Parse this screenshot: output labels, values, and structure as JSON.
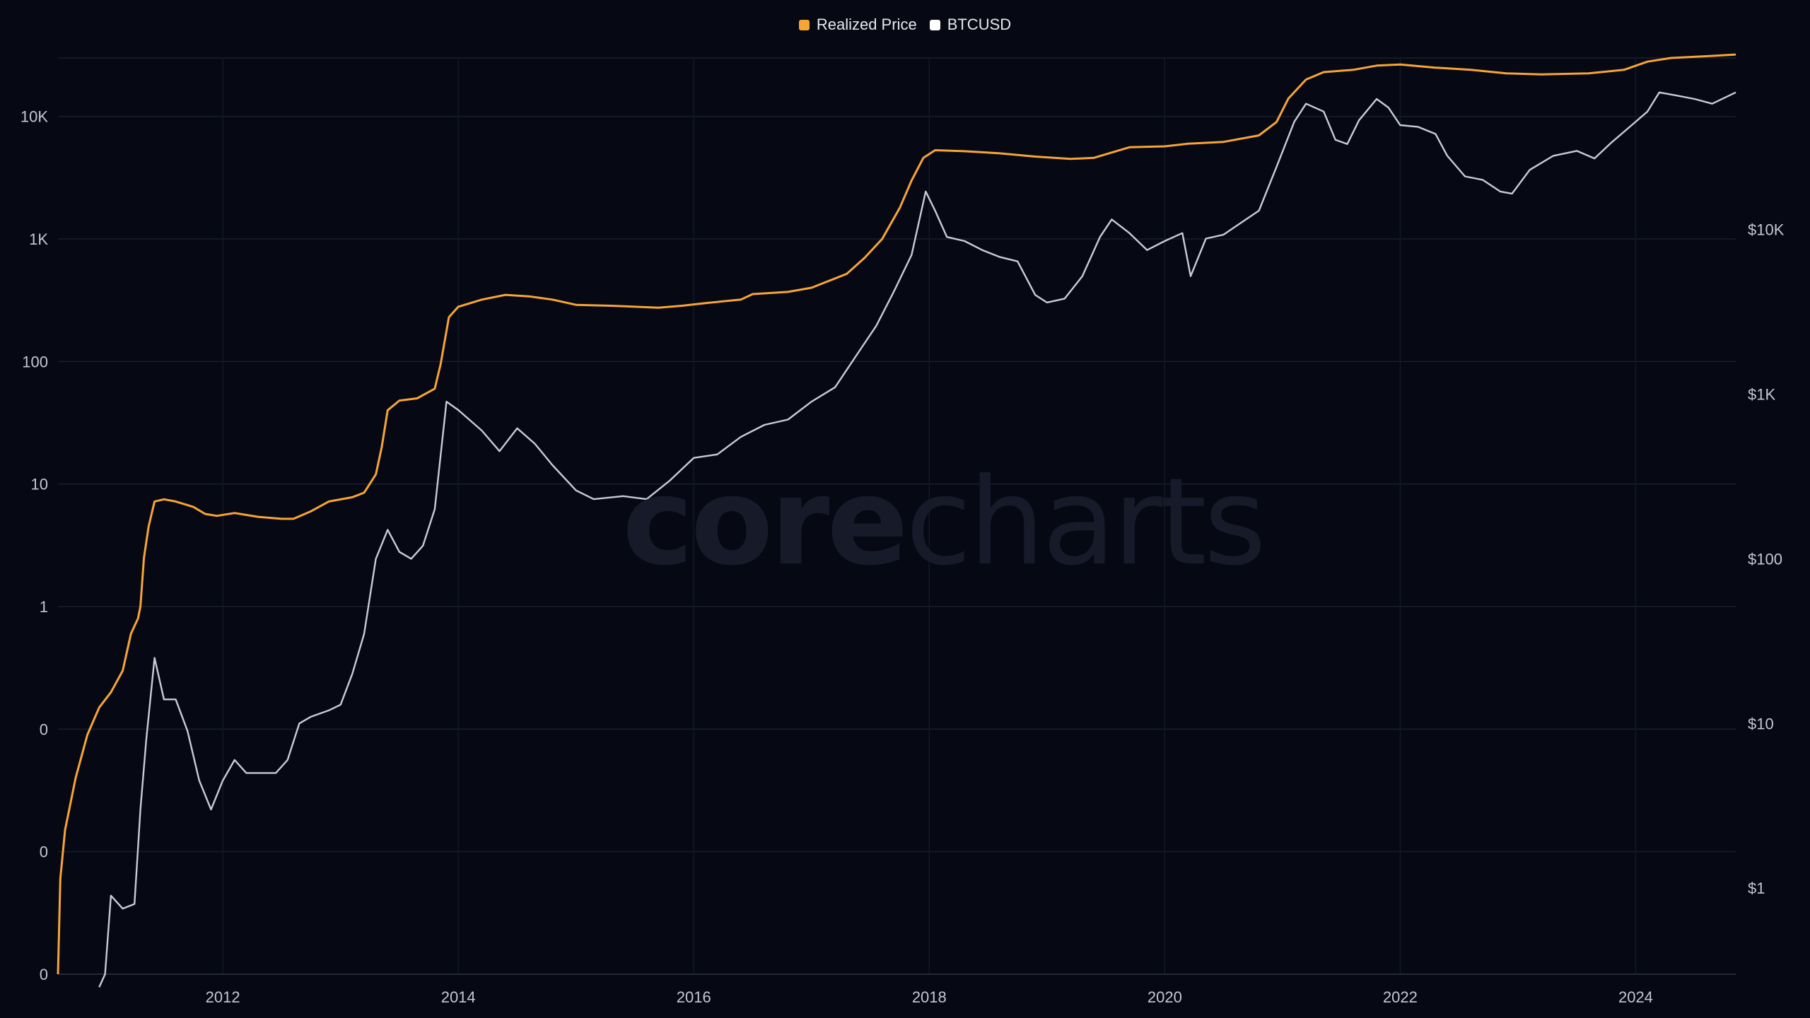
{
  "legend": [
    {
      "label": "Realized Price",
      "color": "#f7a534"
    },
    {
      "label": "BTCUSD",
      "color": "#ffffff"
    }
  ],
  "watermark": {
    "bold": "core",
    "light": "charts"
  },
  "chart_data": {
    "type": "line",
    "title": "",
    "xlabel": "",
    "ylabel": "",
    "grid": true,
    "legend_position": "top-center",
    "left_axis": {
      "scale": "log",
      "ticks": [
        "0",
        "0",
        "0",
        "1",
        "10",
        "100",
        "1K",
        "10K"
      ],
      "ylim": [
        0.001,
        30000
      ]
    },
    "right_axis": {
      "scale": "log",
      "ticks": [
        "$1",
        "$10",
        "$100",
        "$1K",
        "$10K"
      ],
      "ylim": [
        0.3,
        110000
      ]
    },
    "x_axis": {
      "ticks": [
        "2012",
        "2014",
        "2016",
        "2018",
        "2020",
        "2022",
        "2024"
      ],
      "xlim": [
        2010.6,
        2024.85
      ]
    },
    "series": [
      {
        "name": "Realized Price",
        "color": "#f7a534",
        "axis": "left",
        "points": [
          [
            2010.6,
            0.001
          ],
          [
            2010.62,
            0.006
          ],
          [
            2010.66,
            0.015
          ],
          [
            2010.75,
            0.04
          ],
          [
            2010.85,
            0.09
          ],
          [
            2010.95,
            0.15
          ],
          [
            2011.05,
            0.2
          ],
          [
            2011.15,
            0.3
          ],
          [
            2011.22,
            0.6
          ],
          [
            2011.28,
            0.8
          ],
          [
            2011.3,
            1.0
          ],
          [
            2011.33,
            2.5
          ],
          [
            2011.37,
            4.5
          ],
          [
            2011.42,
            7.2
          ],
          [
            2011.5,
            7.5
          ],
          [
            2011.6,
            7.2
          ],
          [
            2011.75,
            6.5
          ],
          [
            2011.85,
            5.7
          ],
          [
            2011.95,
            5.5
          ],
          [
            2012.1,
            5.8
          ],
          [
            2012.3,
            5.4
          ],
          [
            2012.5,
            5.2
          ],
          [
            2012.6,
            5.2
          ],
          [
            2012.75,
            6.0
          ],
          [
            2012.9,
            7.2
          ],
          [
            2013.1,
            7.8
          ],
          [
            2013.2,
            8.5
          ],
          [
            2013.3,
            12
          ],
          [
            2013.35,
            20
          ],
          [
            2013.4,
            40
          ],
          [
            2013.5,
            48
          ],
          [
            2013.65,
            50
          ],
          [
            2013.8,
            60
          ],
          [
            2013.85,
            95
          ],
          [
            2013.92,
            230
          ],
          [
            2014.0,
            280
          ],
          [
            2014.2,
            320
          ],
          [
            2014.4,
            350
          ],
          [
            2014.6,
            340
          ],
          [
            2014.8,
            320
          ],
          [
            2015.0,
            290
          ],
          [
            2015.3,
            285
          ],
          [
            2015.7,
            275
          ],
          [
            2015.9,
            285
          ],
          [
            2016.1,
            300
          ],
          [
            2016.4,
            320
          ],
          [
            2016.5,
            355
          ],
          [
            2016.8,
            370
          ],
          [
            2017.0,
            400
          ],
          [
            2017.3,
            520
          ],
          [
            2017.45,
            700
          ],
          [
            2017.6,
            1000
          ],
          [
            2017.75,
            1800
          ],
          [
            2017.85,
            3000
          ],
          [
            2017.95,
            4600
          ],
          [
            2018.05,
            5300
          ],
          [
            2018.3,
            5200
          ],
          [
            2018.6,
            5000
          ],
          [
            2018.9,
            4700
          ],
          [
            2019.2,
            4500
          ],
          [
            2019.4,
            4600
          ],
          [
            2019.7,
            5600
          ],
          [
            2020.0,
            5700
          ],
          [
            2020.2,
            6000
          ],
          [
            2020.5,
            6200
          ],
          [
            2020.8,
            7000
          ],
          [
            2020.95,
            9000
          ],
          [
            2021.05,
            14000
          ],
          [
            2021.2,
            20000
          ],
          [
            2021.35,
            23000
          ],
          [
            2021.6,
            24000
          ],
          [
            2021.8,
            26000
          ],
          [
            2022.0,
            26500
          ],
          [
            2022.3,
            25000
          ],
          [
            2022.6,
            24000
          ],
          [
            2022.9,
            22500
          ],
          [
            2023.2,
            22000
          ],
          [
            2023.6,
            22500
          ],
          [
            2023.9,
            24000
          ],
          [
            2024.1,
            28000
          ],
          [
            2024.3,
            30000
          ],
          [
            2024.6,
            31000
          ],
          [
            2024.85,
            32000
          ]
        ]
      },
      {
        "name": "BTCUSD",
        "color": "#c9ccd6",
        "axis": "right",
        "points": [
          [
            2010.95,
            0.25
          ],
          [
            2011.0,
            0.3
          ],
          [
            2011.05,
            0.9
          ],
          [
            2011.15,
            0.75
          ],
          [
            2011.25,
            0.8
          ],
          [
            2011.3,
            3
          ],
          [
            2011.35,
            8
          ],
          [
            2011.42,
            25
          ],
          [
            2011.5,
            14
          ],
          [
            2011.6,
            14
          ],
          [
            2011.7,
            9
          ],
          [
            2011.8,
            4.5
          ],
          [
            2011.9,
            3
          ],
          [
            2012.0,
            4.5
          ],
          [
            2012.1,
            6
          ],
          [
            2012.2,
            5
          ],
          [
            2012.35,
            5
          ],
          [
            2012.45,
            5
          ],
          [
            2012.55,
            6
          ],
          [
            2012.65,
            10
          ],
          [
            2012.75,
            11
          ],
          [
            2012.9,
            12
          ],
          [
            2013.0,
            13
          ],
          [
            2013.1,
            20
          ],
          [
            2013.2,
            35
          ],
          [
            2013.3,
            100
          ],
          [
            2013.4,
            150
          ],
          [
            2013.5,
            110
          ],
          [
            2013.6,
            100
          ],
          [
            2013.7,
            120
          ],
          [
            2013.8,
            200
          ],
          [
            2013.9,
            900
          ],
          [
            2014.0,
            800
          ],
          [
            2014.2,
            600
          ],
          [
            2014.35,
            450
          ],
          [
            2014.5,
            620
          ],
          [
            2014.65,
            500
          ],
          [
            2014.8,
            370
          ],
          [
            2015.0,
            260
          ],
          [
            2015.15,
            230
          ],
          [
            2015.4,
            240
          ],
          [
            2015.6,
            230
          ],
          [
            2015.8,
            300
          ],
          [
            2016.0,
            410
          ],
          [
            2016.2,
            430
          ],
          [
            2016.4,
            550
          ],
          [
            2016.6,
            650
          ],
          [
            2016.8,
            700
          ],
          [
            2017.0,
            900
          ],
          [
            2017.2,
            1100
          ],
          [
            2017.4,
            1800
          ],
          [
            2017.55,
            2600
          ],
          [
            2017.7,
            4200
          ],
          [
            2017.85,
            7000
          ],
          [
            2017.97,
            17000
          ],
          [
            2018.05,
            13000
          ],
          [
            2018.15,
            9000
          ],
          [
            2018.3,
            8500
          ],
          [
            2018.45,
            7500
          ],
          [
            2018.6,
            6800
          ],
          [
            2018.75,
            6400
          ],
          [
            2018.9,
            4000
          ],
          [
            2019.0,
            3600
          ],
          [
            2019.15,
            3800
          ],
          [
            2019.3,
            5200
          ],
          [
            2019.45,
            9000
          ],
          [
            2019.55,
            11500
          ],
          [
            2019.7,
            9500
          ],
          [
            2019.85,
            7500
          ],
          [
            2020.0,
            8500
          ],
          [
            2020.15,
            9500
          ],
          [
            2020.22,
            5200
          ],
          [
            2020.35,
            8800
          ],
          [
            2020.5,
            9300
          ],
          [
            2020.65,
            11000
          ],
          [
            2020.8,
            13000
          ],
          [
            2020.95,
            24000
          ],
          [
            2021.1,
            45000
          ],
          [
            2021.2,
            58000
          ],
          [
            2021.35,
            52000
          ],
          [
            2021.45,
            35000
          ],
          [
            2021.55,
            33000
          ],
          [
            2021.65,
            46000
          ],
          [
            2021.8,
            62000
          ],
          [
            2021.9,
            55000
          ],
          [
            2022.0,
            43000
          ],
          [
            2022.15,
            42000
          ],
          [
            2022.3,
            38000
          ],
          [
            2022.4,
            28000
          ],
          [
            2022.55,
            21000
          ],
          [
            2022.7,
            20000
          ],
          [
            2022.85,
            17000
          ],
          [
            2022.95,
            16500
          ],
          [
            2023.1,
            23000
          ],
          [
            2023.3,
            28000
          ],
          [
            2023.5,
            30000
          ],
          [
            2023.65,
            27000
          ],
          [
            2023.8,
            34000
          ],
          [
            2023.95,
            42000
          ],
          [
            2024.1,
            52000
          ],
          [
            2024.2,
            68000
          ],
          [
            2024.35,
            65000
          ],
          [
            2024.5,
            62000
          ],
          [
            2024.65,
            58000
          ],
          [
            2024.85,
            68000
          ]
        ]
      }
    ]
  }
}
